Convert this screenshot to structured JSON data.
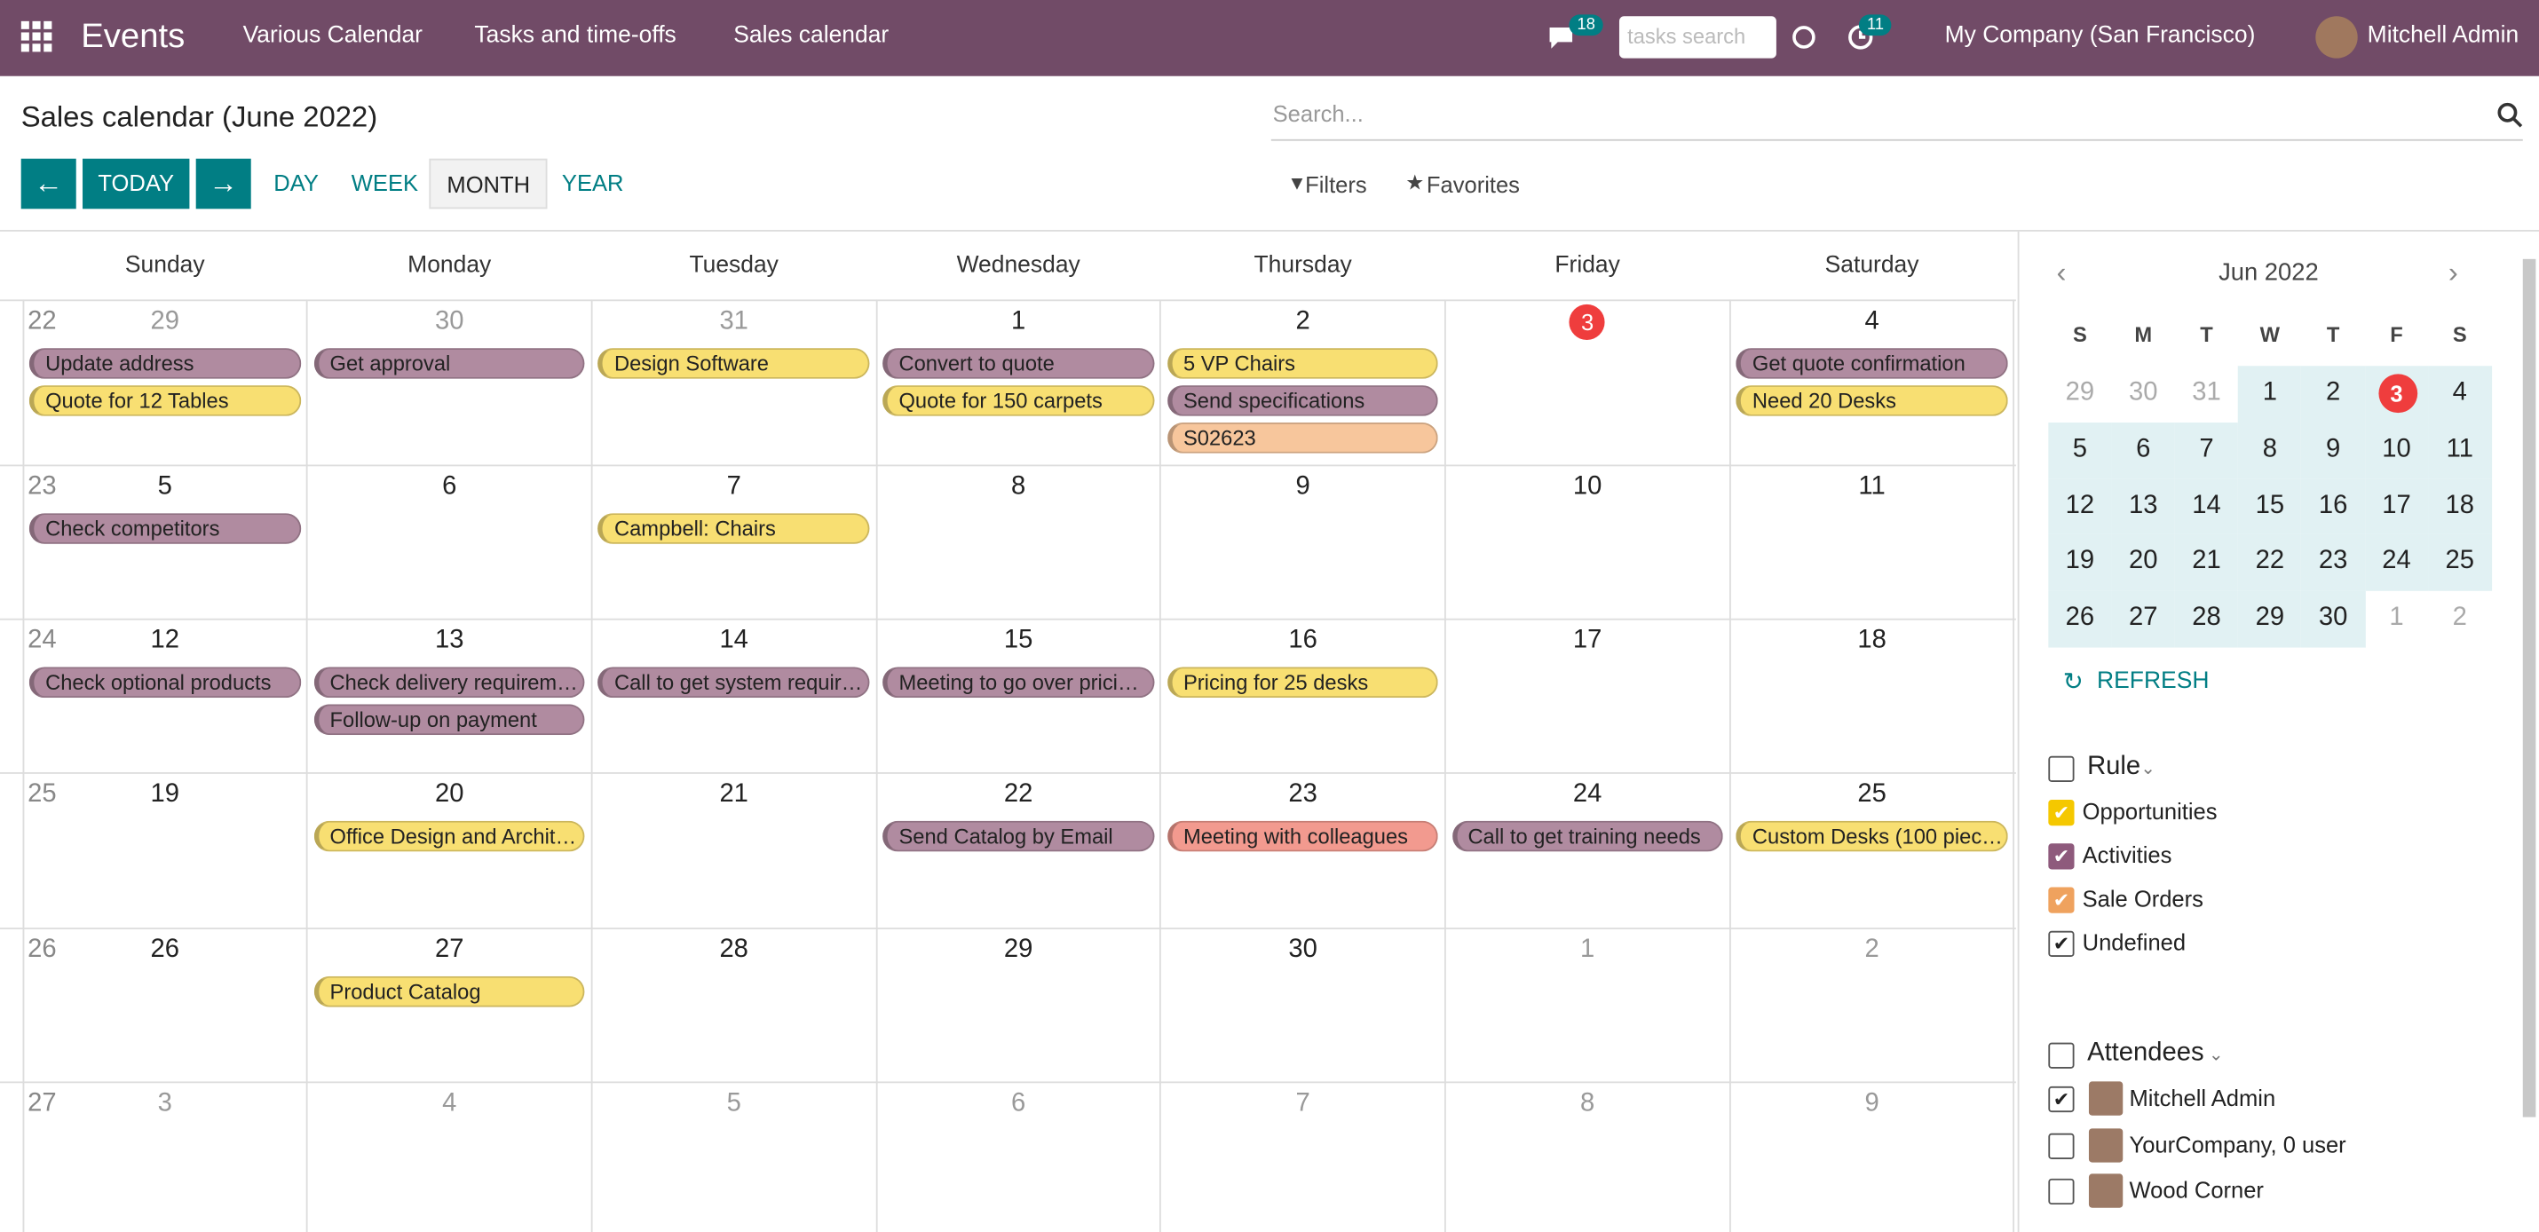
{
  "navbar": {
    "app": "Events",
    "menu": [
      "Various Calendar",
      "Tasks and time-offs",
      "Sales calendar"
    ],
    "messages_count": "18",
    "search_placeholder": "tasks search",
    "activities_count": "11",
    "company": "My Company (San Francisco)",
    "user": "Mitchell Admin"
  },
  "control_panel": {
    "title": "Sales calendar (June 2022)",
    "today": "TODAY",
    "scales": [
      "DAY",
      "WEEK",
      "MONTH",
      "YEAR"
    ],
    "active_scale": 2,
    "search_placeholder": "Search...",
    "filters": "Filters",
    "favorites": "Favorites"
  },
  "calendar": {
    "weekdays": [
      "Sunday",
      "Monday",
      "Tuesday",
      "Wednesday",
      "Thursday",
      "Friday",
      "Saturday"
    ],
    "weeks": [
      {
        "number": "22",
        "days": [
          {
            "d": "29",
            "out": true,
            "ev": [
              {
                "t": "Update address",
                "c": "#b08ba0"
              },
              {
                "t": "Quote for 12 Tables",
                "c": "#f8df72"
              }
            ]
          },
          {
            "d": "30",
            "out": true,
            "ev": [
              {
                "t": "Get approval",
                "c": "#b08ba0"
              }
            ]
          },
          {
            "d": "31",
            "out": true,
            "ev": [
              {
                "t": "Design Software",
                "c": "#f8df72"
              }
            ]
          },
          {
            "d": "1",
            "ev": [
              {
                "t": "Convert to quote",
                "c": "#b08ba0"
              },
              {
                "t": "Quote for 150 carpets",
                "c": "#f8df72"
              }
            ]
          },
          {
            "d": "2",
            "ev": [
              {
                "t": "5 VP Chairs",
                "c": "#f8df72"
              },
              {
                "t": "Send specifications",
                "c": "#b08ba0"
              },
              {
                "t": "S02623",
                "c": "#f7c69c"
              }
            ]
          },
          {
            "d": "3",
            "today": true,
            "ev": []
          },
          {
            "d": "4",
            "ev": [
              {
                "t": "Get quote confirmation",
                "c": "#b08ba0"
              },
              {
                "t": "Need 20 Desks",
                "c": "#f8df72"
              }
            ]
          }
        ]
      },
      {
        "number": "23",
        "days": [
          {
            "d": "5",
            "ev": [
              {
                "t": "Check competitors",
                "c": "#b08ba0"
              }
            ]
          },
          {
            "d": "6",
            "ev": []
          },
          {
            "d": "7",
            "ev": [
              {
                "t": "Campbell: Chairs",
                "c": "#f8df72"
              }
            ]
          },
          {
            "d": "8",
            "ev": []
          },
          {
            "d": "9",
            "ev": []
          },
          {
            "d": "10",
            "ev": []
          },
          {
            "d": "11",
            "ev": []
          }
        ]
      },
      {
        "number": "24",
        "days": [
          {
            "d": "12",
            "ev": [
              {
                "t": "Check optional products",
                "c": "#b08ba0"
              }
            ]
          },
          {
            "d": "13",
            "ev": [
              {
                "t": "Check delivery requirem…",
                "c": "#b08ba0"
              },
              {
                "t": "Follow-up on payment",
                "c": "#b08ba0"
              }
            ]
          },
          {
            "d": "14",
            "ev": [
              {
                "t": "Call to get system requir…",
                "c": "#b08ba0"
              }
            ]
          },
          {
            "d": "15",
            "ev": [
              {
                "t": "Meeting to go over prici…",
                "c": "#b08ba0"
              }
            ]
          },
          {
            "d": "16",
            "ev": [
              {
                "t": "Pricing for 25 desks",
                "c": "#f8df72"
              }
            ]
          },
          {
            "d": "17",
            "ev": []
          },
          {
            "d": "18",
            "ev": []
          }
        ]
      },
      {
        "number": "25",
        "days": [
          {
            "d": "19",
            "ev": []
          },
          {
            "d": "20",
            "ev": [
              {
                "t": "Office Design and Archit…",
                "c": "#f8df72"
              }
            ]
          },
          {
            "d": "21",
            "ev": []
          },
          {
            "d": "22",
            "ev": [
              {
                "t": "Send Catalog by Email",
                "c": "#b08ba0"
              }
            ]
          },
          {
            "d": "23",
            "ev": [
              {
                "t": "Meeting with colleagues",
                "c": "#f29a8f"
              }
            ]
          },
          {
            "d": "24",
            "ev": [
              {
                "t": "Call to get training needs",
                "c": "#b08ba0"
              }
            ]
          },
          {
            "d": "25",
            "ev": [
              {
                "t": "Custom Desks (100 piec…",
                "c": "#f8df72"
              }
            ]
          }
        ]
      },
      {
        "number": "26",
        "days": [
          {
            "d": "26",
            "ev": []
          },
          {
            "d": "27",
            "ev": [
              {
                "t": "Product Catalog",
                "c": "#f8df72"
              }
            ]
          },
          {
            "d": "28",
            "ev": []
          },
          {
            "d": "29",
            "ev": []
          },
          {
            "d": "30",
            "ev": []
          },
          {
            "d": "1",
            "out": true,
            "ev": []
          },
          {
            "d": "2",
            "out": true,
            "ev": []
          }
        ]
      },
      {
        "number": "27",
        "days": [
          {
            "d": "3",
            "out": true,
            "ev": []
          },
          {
            "d": "4",
            "out": true,
            "ev": []
          },
          {
            "d": "5",
            "out": true,
            "ev": []
          },
          {
            "d": "6",
            "out": true,
            "ev": []
          },
          {
            "d": "7",
            "out": true,
            "ev": []
          },
          {
            "d": "8",
            "out": true,
            "ev": []
          },
          {
            "d": "9",
            "out": true,
            "ev": []
          }
        ]
      }
    ]
  },
  "sidebar": {
    "month_label": "Jun 2022",
    "weekdays": [
      "S",
      "M",
      "T",
      "W",
      "T",
      "F",
      "S"
    ],
    "rows": [
      [
        {
          "d": "29",
          "out": true
        },
        {
          "d": "30",
          "out": true
        },
        {
          "d": "31",
          "out": true
        },
        {
          "d": "1"
        },
        {
          "d": "2"
        },
        {
          "d": "3",
          "today": true
        },
        {
          "d": "4"
        }
      ],
      [
        {
          "d": "5"
        },
        {
          "d": "6"
        },
        {
          "d": "7"
        },
        {
          "d": "8"
        },
        {
          "d": "9"
        },
        {
          "d": "10"
        },
        {
          "d": "11"
        }
      ],
      [
        {
          "d": "12"
        },
        {
          "d": "13"
        },
        {
          "d": "14"
        },
        {
          "d": "15"
        },
        {
          "d": "16"
        },
        {
          "d": "17"
        },
        {
          "d": "18"
        }
      ],
      [
        {
          "d": "19"
        },
        {
          "d": "20"
        },
        {
          "d": "21"
        },
        {
          "d": "22"
        },
        {
          "d": "23"
        },
        {
          "d": "24"
        },
        {
          "d": "25"
        }
      ],
      [
        {
          "d": "26"
        },
        {
          "d": "27"
        },
        {
          "d": "28"
        },
        {
          "d": "29"
        },
        {
          "d": "30"
        },
        {
          "d": "1",
          "out": true
        },
        {
          "d": "2",
          "out": true
        }
      ]
    ],
    "refresh": "REFRESH",
    "groups": [
      {
        "title": "Rule",
        "items": [
          {
            "label": "Opportunities",
            "checked": true,
            "color": "#f5c800"
          },
          {
            "label": "Activities",
            "checked": true,
            "color": "#8e5a7c"
          },
          {
            "label": "Sale Orders",
            "checked": true,
            "color": "#efa25e"
          },
          {
            "label": "Undefined",
            "checked": true
          }
        ]
      },
      {
        "title": "Attendees",
        "items": [
          {
            "label": "Mitchell Admin",
            "checked": true,
            "avatar": true
          },
          {
            "label": "YourCompany, 0 user",
            "checked": false,
            "avatar": true
          },
          {
            "label": "Wood Corner",
            "checked": false,
            "avatar": true
          }
        ]
      }
    ]
  }
}
